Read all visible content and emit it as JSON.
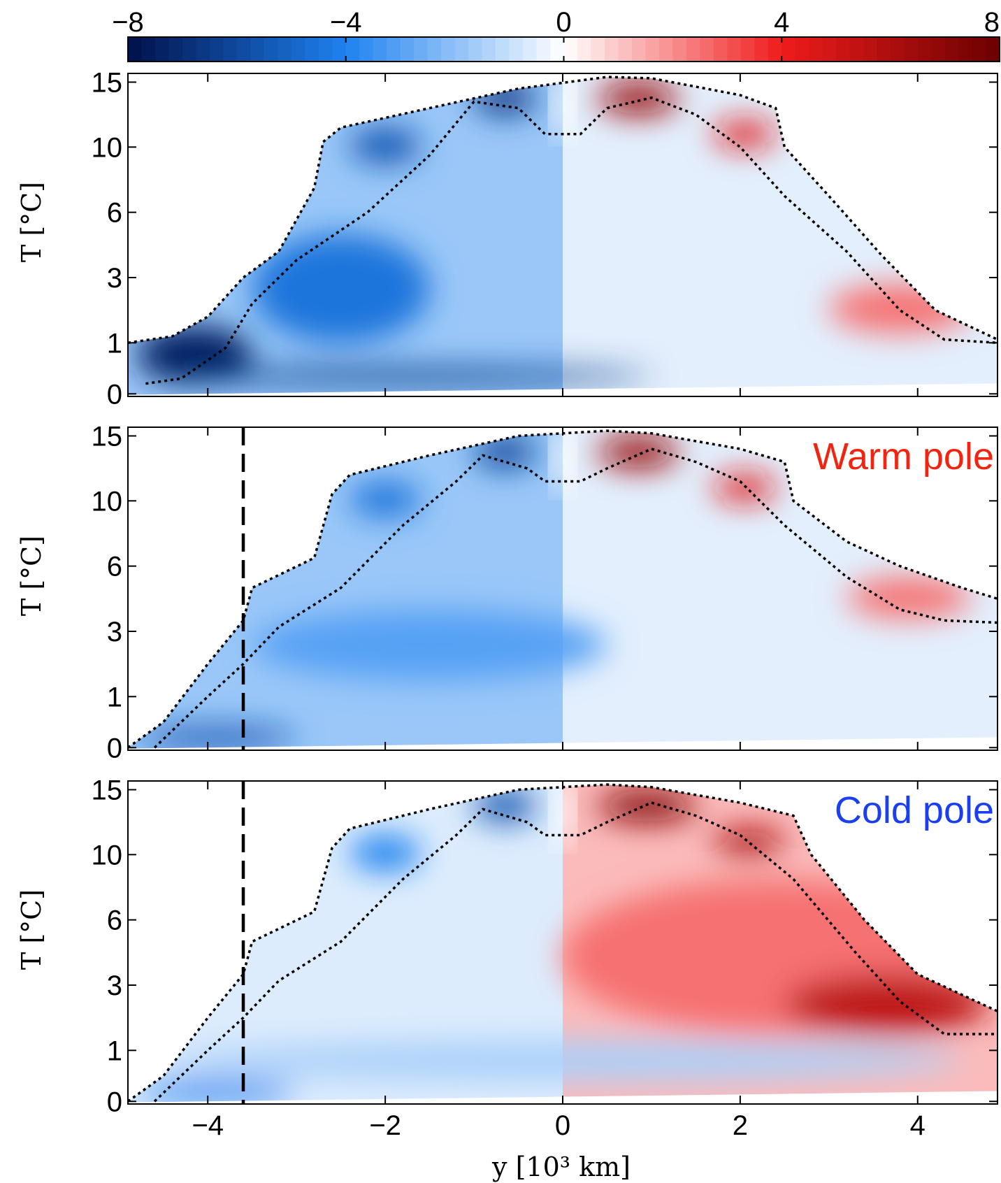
{
  "colorbar": {
    "ticks": [
      {
        "value": -8,
        "label": "−8"
      },
      {
        "value": -4,
        "label": "−4"
      },
      {
        "value": 0,
        "label": "0"
      },
      {
        "value": 4,
        "label": "4"
      },
      {
        "value": 8,
        "label": "8"
      }
    ],
    "range": [
      -8,
      8
    ],
    "colors": {
      "neg_max": "#00104a",
      "neg_mid": "#1f82f0",
      "zero": "#ffffff",
      "pos_mid": "#f01c1c",
      "pos_max": "#6a0000"
    }
  },
  "chart_data": [
    {
      "type": "heatmap",
      "panel": 1,
      "annotation": "",
      "annotation_color": "",
      "xlabel": "",
      "ylabel": "T [°C]",
      "xlim": [
        -4.9,
        4.9
      ],
      "ylim_label_positions": [
        "0",
        "1",
        "3",
        "6",
        "10",
        "15"
      ],
      "yticks": [
        "15",
        "10",
        "6",
        "3",
        "1",
        "0"
      ],
      "xticks": [
        -4,
        -2,
        0,
        2,
        4
      ],
      "xtick_labels_shown": false,
      "dashed_line_y": null,
      "outer_contour": [
        [
          -4.9,
          1.0
        ],
        [
          -4.4,
          1.2
        ],
        [
          -4.0,
          1.8
        ],
        [
          -3.6,
          3.0
        ],
        [
          -3.2,
          4.2
        ],
        [
          -2.8,
          7.5
        ],
        [
          -2.7,
          10.4
        ],
        [
          -2.5,
          11.5
        ],
        [
          -1.5,
          13.0
        ],
        [
          -0.5,
          14.5
        ],
        [
          0.5,
          15.4
        ],
        [
          1.0,
          15.3
        ],
        [
          2.0,
          14.0
        ],
        [
          2.4,
          13.0
        ],
        [
          2.5,
          10.0
        ],
        [
          3.0,
          7.0
        ],
        [
          3.6,
          4.0
        ],
        [
          4.2,
          2.0
        ],
        [
          4.9,
          1.1
        ]
      ],
      "inner_contour": [
        [
          -4.7,
          0.2
        ],
        [
          -4.3,
          0.3
        ],
        [
          -3.8,
          0.9
        ],
        [
          -3.5,
          2.2
        ],
        [
          -3.0,
          3.8
        ],
        [
          -2.2,
          6.0
        ],
        [
          -1.5,
          9.5
        ],
        [
          -1.0,
          13.5
        ],
        [
          -0.5,
          13.0
        ],
        [
          -0.2,
          11.0
        ],
        [
          0.2,
          11.0
        ],
        [
          0.5,
          13.0
        ],
        [
          1.0,
          13.8
        ],
        [
          1.5,
          12.5
        ],
        [
          2.0,
          10.0
        ],
        [
          2.5,
          7.0
        ],
        [
          3.2,
          4.2
        ],
        [
          3.8,
          2.0
        ],
        [
          4.3,
          1.1
        ],
        [
          4.9,
          1.0
        ]
      ],
      "regions": [
        {
          "y_range": [
            -1.0,
            -0.3
          ],
          "t_range": [
            12.5,
            15
          ],
          "value": -6.5
        },
        {
          "y_range": [
            -2.4,
            -1.6
          ],
          "t_range": [
            9.0,
            11.5
          ],
          "value": -5.5
        },
        {
          "y_range": [
            -4.8,
            -3.5
          ],
          "t_range": [
            0.2,
            1.5
          ],
          "value": -7.5
        },
        {
          "y_range": [
            -4.5,
            1.0
          ],
          "t_range": [
            0.2,
            0.5
          ],
          "value": -6.5
        },
        {
          "y_range": [
            -3.5,
            -1.5
          ],
          "t_range": [
            1.0,
            5.0
          ],
          "value": -4.5
        },
        {
          "y_range": [
            0.4,
            1.3
          ],
          "t_range": [
            12.5,
            15
          ],
          "value": 6.5
        },
        {
          "y_range": [
            1.7,
            2.4
          ],
          "t_range": [
            10.0,
            12.0
          ],
          "value": 4.5
        },
        {
          "y_range": [
            3.0,
            4.6
          ],
          "t_range": [
            1.3,
            2.8
          ],
          "value": 2.5
        }
      ]
    },
    {
      "type": "heatmap",
      "panel": 2,
      "annotation": "Warm pole",
      "annotation_color": "#f2240f",
      "xlabel": "",
      "ylabel": "T [°C]",
      "xlim": [
        -4.9,
        4.9
      ],
      "yticks": [
        "15",
        "10",
        "6",
        "3",
        "1",
        "0"
      ],
      "xticks": [
        -4,
        -2,
        0,
        2,
        4
      ],
      "xtick_labels_shown": false,
      "dashed_line_y": -3.6,
      "outer_contour": [
        [
          -4.9,
          0.0
        ],
        [
          -4.5,
          0.5
        ],
        [
          -4.0,
          2.0
        ],
        [
          -3.6,
          3.5
        ],
        [
          -3.5,
          5.0
        ],
        [
          -2.8,
          6.5
        ],
        [
          -2.6,
          10.5
        ],
        [
          -2.4,
          12.0
        ],
        [
          -1.5,
          13.5
        ],
        [
          -0.5,
          15.0
        ],
        [
          0.5,
          15.4
        ],
        [
          1.0,
          15.2
        ],
        [
          2.0,
          14.0
        ],
        [
          2.5,
          13.0
        ],
        [
          2.6,
          10.0
        ],
        [
          3.2,
          7.5
        ],
        [
          3.8,
          6.0
        ],
        [
          4.5,
          5.0
        ],
        [
          4.9,
          4.5
        ]
      ],
      "inner_contour": [
        [
          -4.6,
          0.0
        ],
        [
          -4.0,
          1.0
        ],
        [
          -3.6,
          2.0
        ],
        [
          -3.2,
          3.2
        ],
        [
          -2.5,
          5.0
        ],
        [
          -1.8,
          8.5
        ],
        [
          -1.2,
          11.5
        ],
        [
          -0.9,
          13.5
        ],
        [
          -0.4,
          12.5
        ],
        [
          -0.2,
          11.5
        ],
        [
          0.2,
          11.5
        ],
        [
          0.5,
          12.5
        ],
        [
          1.0,
          14.0
        ],
        [
          1.5,
          13.0
        ],
        [
          2.0,
          11.5
        ],
        [
          2.5,
          8.5
        ],
        [
          3.2,
          5.5
        ],
        [
          3.8,
          4.0
        ],
        [
          4.3,
          3.5
        ],
        [
          4.9,
          3.4
        ]
      ],
      "regions": [
        {
          "y_range": [
            -1.0,
            -0.3
          ],
          "t_range": [
            12.5,
            15
          ],
          "value": -6.0
        },
        {
          "y_range": [
            -2.4,
            -1.6
          ],
          "t_range": [
            9.0,
            11.5
          ],
          "value": -4.5
        },
        {
          "y_range": [
            -4.8,
            -3.0
          ],
          "t_range": [
            0.0,
            0.4
          ],
          "value": -5.5
        },
        {
          "y_range": [
            -3.5,
            0.5
          ],
          "t_range": [
            1.5,
            4.0
          ],
          "value": -3.0
        },
        {
          "y_range": [
            0.4,
            1.3
          ],
          "t_range": [
            12.5,
            15
          ],
          "value": 6.5
        },
        {
          "y_range": [
            1.7,
            2.4
          ],
          "t_range": [
            10.0,
            12.0
          ],
          "value": 4.5
        },
        {
          "y_range": [
            3.2,
            4.6
          ],
          "t_range": [
            3.6,
            5.5
          ],
          "value": 2.5
        }
      ]
    },
    {
      "type": "heatmap",
      "panel": 3,
      "annotation": "Cold pole",
      "annotation_color": "#1a3ef2",
      "xlabel": "y [10³ km]",
      "ylabel": "T [°C]",
      "xlim": [
        -4.9,
        4.9
      ],
      "yticks": [
        "15",
        "10",
        "6",
        "3",
        "1",
        "0"
      ],
      "xticks": [
        -4,
        -2,
        0,
        2,
        4
      ],
      "xtick_labels": [
        "−4",
        "−2",
        "0",
        "2",
        "4"
      ],
      "xtick_labels_shown": true,
      "dashed_line_y": -3.6,
      "outer_contour": [
        [
          -4.9,
          0.0
        ],
        [
          -4.5,
          0.5
        ],
        [
          -4.0,
          2.0
        ],
        [
          -3.6,
          3.5
        ],
        [
          -3.5,
          5.0
        ],
        [
          -2.8,
          6.5
        ],
        [
          -2.6,
          10.5
        ],
        [
          -2.4,
          12.0
        ],
        [
          -1.5,
          13.5
        ],
        [
          -0.5,
          15.0
        ],
        [
          0.5,
          15.4
        ],
        [
          1.0,
          15.2
        ],
        [
          2.0,
          14.0
        ],
        [
          2.6,
          13.0
        ],
        [
          2.8,
          10.0
        ],
        [
          3.4,
          6.0
        ],
        [
          4.0,
          3.5
        ],
        [
          4.9,
          2.2
        ]
      ],
      "inner_contour": [
        [
          -4.6,
          0.0
        ],
        [
          -4.0,
          1.0
        ],
        [
          -3.6,
          2.0
        ],
        [
          -3.2,
          3.2
        ],
        [
          -2.5,
          5.0
        ],
        [
          -1.8,
          8.5
        ],
        [
          -1.2,
          11.5
        ],
        [
          -0.9,
          13.5
        ],
        [
          -0.4,
          12.5
        ],
        [
          -0.2,
          11.5
        ],
        [
          0.2,
          11.5
        ],
        [
          0.5,
          12.5
        ],
        [
          1.0,
          14.0
        ],
        [
          1.5,
          13.0
        ],
        [
          2.0,
          11.5
        ],
        [
          2.6,
          8.5
        ],
        [
          3.3,
          4.5
        ],
        [
          3.8,
          2.5
        ],
        [
          4.3,
          1.5
        ],
        [
          4.9,
          1.5
        ]
      ],
      "regions": [
        {
          "y_range": [
            -1.0,
            -0.3
          ],
          "t_range": [
            12.5,
            15
          ],
          "value": -5.5
        },
        {
          "y_range": [
            -2.4,
            -1.6
          ],
          "t_range": [
            9.0,
            11.5
          ],
          "value": -4.0
        },
        {
          "y_range": [
            -4.8,
            -3.0
          ],
          "t_range": [
            0.0,
            0.4
          ],
          "value": -4.0
        },
        {
          "y_range": [
            -4.5,
            4.5
          ],
          "t_range": [
            0.4,
            1.3
          ],
          "value": -1.5
        },
        {
          "y_range": [
            0.4,
            1.5
          ],
          "t_range": [
            12.5,
            15
          ],
          "value": 7.0
        },
        {
          "y_range": [
            1.7,
            2.5
          ],
          "t_range": [
            10.0,
            12.0
          ],
          "value": 6.0
        },
        {
          "y_range": [
            0.0,
            4.8
          ],
          "t_range": [
            1.5,
            8.5
          ],
          "value": 2.5
        },
        {
          "y_range": [
            2.5,
            4.8
          ],
          "t_range": [
            1.5,
            3.5
          ],
          "value": 5.5
        }
      ]
    }
  ]
}
